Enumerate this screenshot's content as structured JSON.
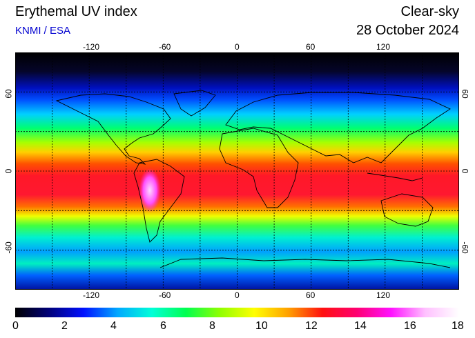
{
  "header": {
    "title": "Erythemal UV index",
    "source": "KNMI / ESA",
    "condition": "Clear-sky",
    "date": "28 October 2024"
  },
  "map": {
    "lon_ticks": [
      "-120",
      "-60",
      "0",
      "60",
      "120"
    ],
    "lat_ticks": [
      "60",
      "0",
      "-60"
    ],
    "lon_values": [
      -120,
      -60,
      0,
      60,
      120
    ],
    "lat_values": [
      60,
      0,
      -60
    ],
    "lon_range": [
      -180,
      180
    ],
    "lat_range": [
      -90,
      90
    ],
    "grid": "dashed every 30 degrees"
  },
  "colorbar": {
    "labels": [
      "0",
      "2",
      "4",
      "6",
      "8",
      "10",
      "12",
      "14",
      "16",
      "18"
    ],
    "range": [
      0,
      18
    ],
    "stops": [
      "#000000",
      "#00007a",
      "#0010ff",
      "#00a8ff",
      "#00ffd8",
      "#00ff50",
      "#90ff00",
      "#ffff00",
      "#ffa000",
      "#ff1010",
      "#ff0070",
      "#ff10ff",
      "#ffc0ff",
      "#ffffff"
    ]
  }
}
